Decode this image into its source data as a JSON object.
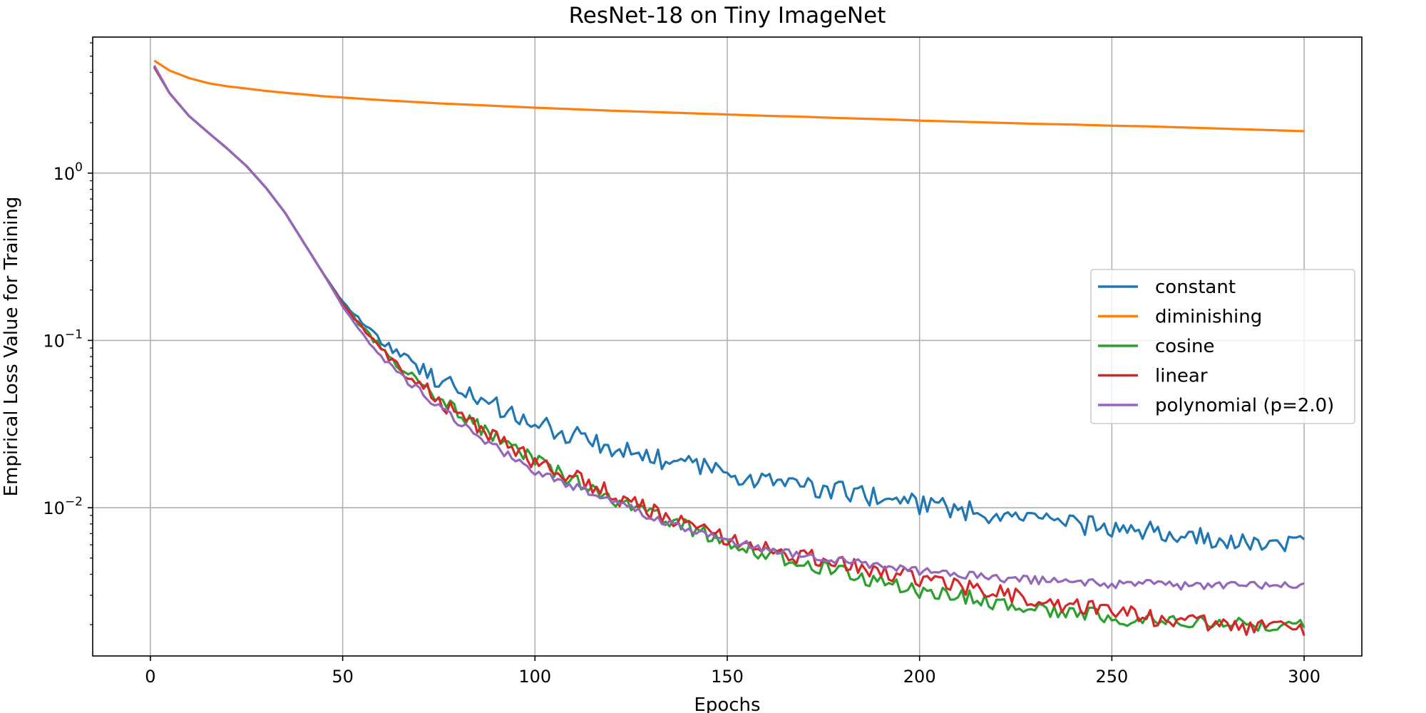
{
  "chart_data": {
    "type": "line",
    "title": "ResNet-18 on Tiny ImageNet",
    "xlabel": "Epochs",
    "ylabel": "Empirical Loss Value for Training",
    "xlim": [
      -15,
      315
    ],
    "ylim": [
      0.0013,
      6.5
    ],
    "yscale": "log",
    "grid": true,
    "legend_position": "center-right",
    "x_ticks": [
      0,
      50,
      100,
      150,
      200,
      250,
      300
    ],
    "y_ticks": [
      {
        "value": 0.01,
        "base": "10",
        "exp": "−2"
      },
      {
        "value": 0.1,
        "base": "10",
        "exp": "−1"
      },
      {
        "value": 1,
        "base": "10",
        "exp": "0"
      }
    ],
    "x": [
      1,
      5,
      10,
      15,
      20,
      25,
      30,
      35,
      40,
      45,
      50,
      55,
      60,
      65,
      70,
      75,
      80,
      85,
      90,
      95,
      100,
      110,
      120,
      130,
      140,
      150,
      160,
      170,
      180,
      190,
      200,
      210,
      220,
      230,
      240,
      250,
      260,
      270,
      280,
      290,
      300
    ],
    "series": [
      {
        "name": "constant",
        "color": "#1f77b4",
        "noise": 0.06,
        "values": [
          4.3,
          3.0,
          2.2,
          1.75,
          1.4,
          1.1,
          0.82,
          0.58,
          0.38,
          0.25,
          0.17,
          0.13,
          0.1,
          0.082,
          0.068,
          0.058,
          0.05,
          0.044,
          0.04,
          0.035,
          0.032,
          0.027,
          0.023,
          0.02,
          0.018,
          0.016,
          0.0145,
          0.0135,
          0.0125,
          0.0115,
          0.0105,
          0.0098,
          0.009,
          0.0085,
          0.008,
          0.0075,
          0.0072,
          0.0068,
          0.0063,
          0.006,
          0.006
        ]
      },
      {
        "name": "diminishing",
        "color": "#ff7f0e",
        "noise": 0.0,
        "values": [
          4.7,
          4.1,
          3.7,
          3.45,
          3.3,
          3.2,
          3.1,
          3.02,
          2.95,
          2.88,
          2.83,
          2.78,
          2.73,
          2.69,
          2.65,
          2.61,
          2.58,
          2.55,
          2.52,
          2.49,
          2.46,
          2.41,
          2.36,
          2.32,
          2.28,
          2.24,
          2.2,
          2.17,
          2.13,
          2.1,
          2.06,
          2.03,
          2.0,
          1.97,
          1.95,
          1.92,
          1.9,
          1.87,
          1.84,
          1.81,
          1.78
        ]
      },
      {
        "name": "cosine",
        "color": "#2ca02c",
        "noise": 0.045,
        "values": [
          4.3,
          3.0,
          2.2,
          1.75,
          1.4,
          1.1,
          0.82,
          0.58,
          0.38,
          0.25,
          0.165,
          0.12,
          0.09,
          0.07,
          0.055,
          0.045,
          0.037,
          0.031,
          0.026,
          0.022,
          0.019,
          0.0145,
          0.0115,
          0.0093,
          0.0076,
          0.0063,
          0.0053,
          0.0046,
          0.0041,
          0.0036,
          0.0032,
          0.003,
          0.0027,
          0.0025,
          0.0024,
          0.0022,
          0.0021,
          0.0021,
          0.002,
          0.002,
          0.002
        ]
      },
      {
        "name": "linear",
        "color": "#d62728",
        "noise": 0.05,
        "values": [
          4.3,
          3.0,
          2.2,
          1.75,
          1.4,
          1.1,
          0.82,
          0.58,
          0.38,
          0.25,
          0.165,
          0.12,
          0.088,
          0.068,
          0.054,
          0.044,
          0.036,
          0.03,
          0.026,
          0.022,
          0.019,
          0.0155,
          0.012,
          0.0095,
          0.0078,
          0.0065,
          0.0057,
          0.0051,
          0.0046,
          0.0042,
          0.0038,
          0.0034,
          0.0031,
          0.0028,
          0.0026,
          0.0024,
          0.0022,
          0.0021,
          0.002,
          0.0019,
          0.0019
        ]
      },
      {
        "name": "polynomial (p=2.0)",
        "color": "#9467bd",
        "noise": 0.025,
        "values": [
          4.4,
          3.0,
          2.2,
          1.75,
          1.4,
          1.1,
          0.82,
          0.58,
          0.38,
          0.25,
          0.16,
          0.11,
          0.08,
          0.062,
          0.05,
          0.04,
          0.033,
          0.027,
          0.023,
          0.019,
          0.0165,
          0.0135,
          0.011,
          0.0088,
          0.0073,
          0.0063,
          0.0057,
          0.0052,
          0.0048,
          0.0045,
          0.0042,
          0.004,
          0.0038,
          0.0037,
          0.0036,
          0.0035,
          0.0035,
          0.0034,
          0.0034,
          0.0034,
          0.0034
        ]
      }
    ]
  }
}
